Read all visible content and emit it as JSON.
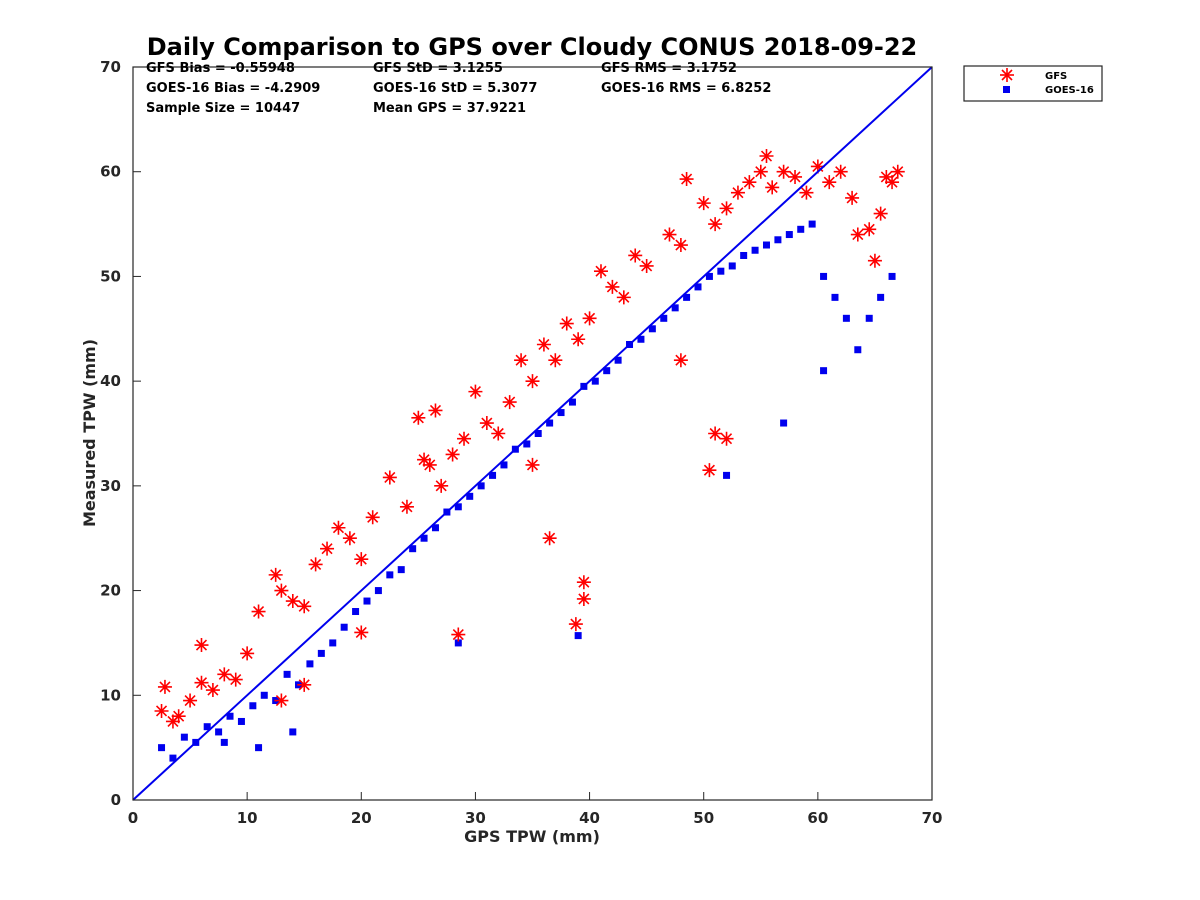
{
  "chart_data": {
    "type": "scatter",
    "title": "Daily Comparison to GPS over Cloudy CONUS 2018-09-22",
    "xlabel": "GPS TPW (mm)",
    "ylabel": "Measured TPW (mm)",
    "xlim": [
      0,
      70
    ],
    "ylim": [
      0,
      70
    ],
    "xticks": [
      "0",
      "10",
      "20",
      "30",
      "40",
      "50",
      "60",
      "70"
    ],
    "yticks": [
      "0",
      "10",
      "20",
      "30",
      "40",
      "50",
      "60",
      "70"
    ],
    "grid": false,
    "legend_position": "outside top-right",
    "stats": [
      [
        "GFS Bias = -0.55948",
        "GFS StD = 3.1255",
        "GFS RMS = 3.1752"
      ],
      [
        "GOES-16 Bias = -4.2909",
        "GOES-16 StD = 5.3077",
        "GOES-16 RMS = 6.8252"
      ],
      [
        "Sample Size = 10447",
        "Mean GPS = 37.9221",
        ""
      ]
    ],
    "reference_line": {
      "x": [
        0,
        70
      ],
      "y": [
        0,
        70
      ],
      "color": "#0000ee"
    },
    "series": [
      {
        "name": "GFS",
        "marker": "asterisk",
        "color": "#ff0000",
        "sample_points": [
          [
            2.5,
            8.5
          ],
          [
            2.8,
            10.8
          ],
          [
            3.5,
            7.5
          ],
          [
            4.0,
            8.0
          ],
          [
            5.0,
            9.5
          ],
          [
            6.0,
            14.8
          ],
          [
            6.0,
            11.2
          ],
          [
            7.0,
            10.5
          ],
          [
            8.0,
            12.0
          ],
          [
            9.0,
            11.5
          ],
          [
            10.0,
            14.0
          ],
          [
            11.0,
            18.0
          ],
          [
            12.5,
            21.5
          ],
          [
            13.0,
            20.0
          ],
          [
            14.0,
            19.0
          ],
          [
            15.0,
            18.5
          ],
          [
            16.0,
            22.5
          ],
          [
            17.0,
            24.0
          ],
          [
            18.0,
            26.0
          ],
          [
            19.0,
            25.0
          ],
          [
            20.0,
            23.0
          ],
          [
            21.0,
            27.0
          ],
          [
            22.5,
            30.8
          ],
          [
            24.0,
            28.0
          ],
          [
            25.0,
            36.5
          ],
          [
            25.5,
            32.5
          ],
          [
            26.0,
            32.0
          ],
          [
            26.5,
            37.2
          ],
          [
            27.0,
            30.0
          ],
          [
            28.0,
            33.0
          ],
          [
            29.0,
            34.5
          ],
          [
            30.0,
            39.0
          ],
          [
            31.0,
            36.0
          ],
          [
            32.0,
            35.0
          ],
          [
            33.0,
            38.0
          ],
          [
            34.0,
            42.0
          ],
          [
            35.0,
            40.0
          ],
          [
            36.0,
            43.5
          ],
          [
            37.0,
            42.0
          ],
          [
            38.0,
            45.5
          ],
          [
            39.0,
            44.0
          ],
          [
            40.0,
            46.0
          ],
          [
            41.0,
            50.5
          ],
          [
            42.0,
            49.0
          ],
          [
            43.0,
            48.0
          ],
          [
            44.0,
            52.0
          ],
          [
            45.0,
            51.0
          ],
          [
            47.0,
            54.0
          ],
          [
            48.0,
            53.0
          ],
          [
            48.5,
            59.3
          ],
          [
            50.0,
            57.0
          ],
          [
            51.0,
            55.0
          ],
          [
            52.0,
            56.5
          ],
          [
            53.0,
            58.0
          ],
          [
            54.0,
            59.0
          ],
          [
            55.0,
            60.0
          ],
          [
            55.5,
            61.5
          ],
          [
            56.0,
            58.5
          ],
          [
            57.0,
            60.0
          ],
          [
            58.0,
            59.5
          ],
          [
            59.0,
            58.0
          ],
          [
            60.0,
            60.5
          ],
          [
            61.0,
            59.0
          ],
          [
            62.0,
            60.0
          ],
          [
            63.0,
            57.5
          ],
          [
            63.5,
            54.0
          ],
          [
            64.5,
            54.5
          ],
          [
            65.0,
            51.5
          ],
          [
            65.5,
            56.0
          ],
          [
            66.0,
            59.5
          ],
          [
            66.5,
            59.0
          ],
          [
            67.0,
            60.0
          ],
          [
            39.5,
            20.8
          ],
          [
            39.5,
            19.2
          ],
          [
            38.8,
            16.8
          ],
          [
            28.5,
            15.8
          ],
          [
            36.5,
            25.0
          ],
          [
            50.5,
            31.5
          ],
          [
            51.0,
            35.0
          ],
          [
            52.0,
            34.5
          ],
          [
            48.0,
            42.0
          ],
          [
            35.0,
            32.0
          ],
          [
            20.0,
            16.0
          ],
          [
            15.0,
            11.0
          ],
          [
            13.0,
            9.5
          ]
        ]
      },
      {
        "name": "GOES-16",
        "marker": "square",
        "color": "#0000ee",
        "sample_points": [
          [
            2.5,
            5.0
          ],
          [
            3.5,
            4.0
          ],
          [
            4.5,
            6.0
          ],
          [
            5.5,
            5.5
          ],
          [
            6.5,
            7.0
          ],
          [
            7.5,
            6.5
          ],
          [
            8.5,
            8.0
          ],
          [
            9.5,
            7.5
          ],
          [
            10.5,
            9.0
          ],
          [
            11.5,
            10.0
          ],
          [
            12.5,
            9.5
          ],
          [
            13.5,
            12.0
          ],
          [
            14.5,
            11.0
          ],
          [
            15.5,
            13.0
          ],
          [
            16.5,
            14.0
          ],
          [
            17.5,
            15.0
          ],
          [
            18.5,
            16.5
          ],
          [
            19.5,
            18.0
          ],
          [
            20.5,
            19.0
          ],
          [
            21.5,
            20.0
          ],
          [
            22.5,
            21.5
          ],
          [
            23.5,
            22.0
          ],
          [
            24.5,
            24.0
          ],
          [
            25.5,
            25.0
          ],
          [
            26.5,
            26.0
          ],
          [
            27.5,
            27.5
          ],
          [
            28.5,
            28.0
          ],
          [
            29.5,
            29.0
          ],
          [
            30.5,
            30.0
          ],
          [
            31.5,
            31.0
          ],
          [
            32.5,
            32.0
          ],
          [
            33.5,
            33.5
          ],
          [
            34.5,
            34.0
          ],
          [
            35.5,
            35.0
          ],
          [
            36.5,
            36.0
          ],
          [
            37.5,
            37.0
          ],
          [
            38.5,
            38.0
          ],
          [
            39.5,
            39.5
          ],
          [
            40.5,
            40.0
          ],
          [
            41.5,
            41.0
          ],
          [
            42.5,
            42.0
          ],
          [
            43.5,
            43.5
          ],
          [
            44.5,
            44.0
          ],
          [
            45.5,
            45.0
          ],
          [
            46.5,
            46.0
          ],
          [
            47.5,
            47.0
          ],
          [
            48.5,
            48.0
          ],
          [
            49.5,
            49.0
          ],
          [
            50.5,
            50.0
          ],
          [
            51.5,
            50.5
          ],
          [
            52.5,
            51.0
          ],
          [
            53.5,
            52.0
          ],
          [
            54.5,
            52.5
          ],
          [
            55.5,
            53.0
          ],
          [
            56.5,
            53.5
          ],
          [
            57.5,
            54.0
          ],
          [
            58.5,
            54.5
          ],
          [
            59.5,
            55.0
          ],
          [
            60.5,
            50.0
          ],
          [
            61.5,
            48.0
          ],
          [
            62.5,
            46.0
          ],
          [
            63.5,
            43.0
          ],
          [
            64.5,
            46.0
          ],
          [
            65.5,
            48.0
          ],
          [
            66.5,
            50.0
          ],
          [
            60.5,
            41.0
          ],
          [
            57.0,
            36.0
          ],
          [
            52.0,
            31.0
          ],
          [
            39.0,
            15.7
          ],
          [
            28.5,
            15.0
          ],
          [
            14.0,
            6.5
          ],
          [
            11.0,
            5.0
          ],
          [
            8.0,
            5.5
          ]
        ]
      }
    ]
  }
}
